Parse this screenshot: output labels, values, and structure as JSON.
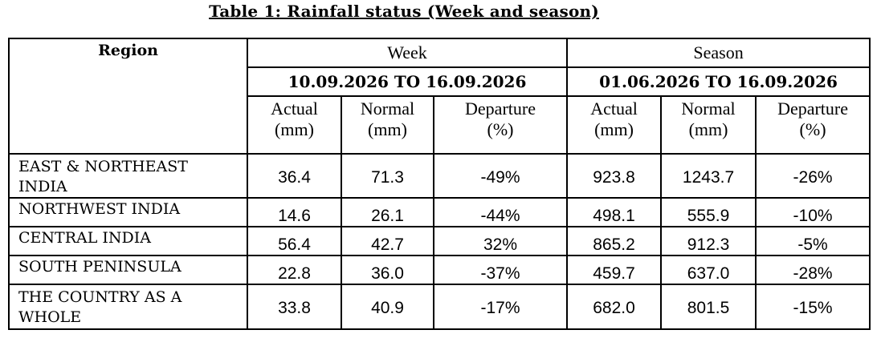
{
  "title": "Table 1: Rainfall status (Week and season)",
  "header": {
    "region": "Region",
    "week": "Week",
    "season": "Season",
    "week_period": "10.09.2026 TO 16.09.2026",
    "season_period": "01.06.2026 TO 16.09.2026",
    "columns": [
      {
        "line1": "Actual",
        "line2": "(mm)"
      },
      {
        "line1": "Normal",
        "line2": "(mm)"
      },
      {
        "line1": "Departure",
        "line2": "(%)"
      },
      {
        "line1": "Actual",
        "line2": "(mm)"
      },
      {
        "line1": "Normal",
        "line2": "(mm)"
      },
      {
        "line1": "Departure",
        "line2": "(%)"
      }
    ]
  },
  "rows": [
    {
      "region_line1": "EAST & NORTHEAST",
      "region_line2": "INDIA",
      "values": [
        "36.4",
        "71.3",
        "-49%",
        "923.8",
        "1243.7",
        "-26%"
      ]
    },
    {
      "region_line1": "NORTHWEST INDIA",
      "region_line2": "",
      "values": [
        "14.6",
        "26.1",
        "-44%",
        "498.1",
        "555.9",
        "-10%"
      ]
    },
    {
      "region_line1": "CENTRAL INDIA",
      "region_line2": "",
      "values": [
        "56.4",
        "42.7",
        "32%",
        "865.2",
        "912.3",
        "-5%"
      ]
    },
    {
      "region_line1": "SOUTH PENINSULA",
      "region_line2": "",
      "values": [
        "22.8",
        "36.0",
        "-37%",
        "459.7",
        "637.0",
        "-28%"
      ]
    },
    {
      "region_line1": "THE COUNTRY AS A",
      "region_line2": "WHOLE",
      "values": [
        "33.8",
        "40.9",
        "-17%",
        "682.0",
        "801.5",
        "-15%"
      ]
    }
  ]
}
